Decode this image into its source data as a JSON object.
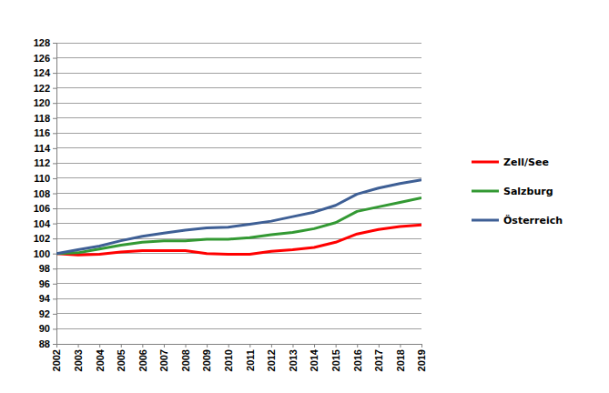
{
  "chart_data": {
    "type": "line",
    "x": [
      2002,
      2003,
      2004,
      2005,
      2006,
      2007,
      2008,
      2009,
      2010,
      2011,
      2012,
      2013,
      2014,
      2015,
      2016,
      2017,
      2018,
      2019
    ],
    "series": [
      {
        "name": "Zell/See",
        "color": "#ff0000",
        "values": [
          100,
          99.8,
          99.9,
          100.2,
          100.4,
          100.4,
          100.4,
          100.0,
          99.9,
          99.9,
          100.3,
          100.5,
          100.8,
          101.5,
          102.6,
          103.2,
          103.6,
          103.8
        ]
      },
      {
        "name": "Salzburg",
        "color": "#339933",
        "values": [
          100,
          100.1,
          100.6,
          101.1,
          101.5,
          101.7,
          101.7,
          101.9,
          101.9,
          102.1,
          102.5,
          102.8,
          103.3,
          104.1,
          105.6,
          106.2,
          106.8,
          107.4
        ]
      },
      {
        "name": "Österreich",
        "color": "#3e5f95",
        "values": [
          100,
          100.5,
          101.0,
          101.7,
          102.3,
          102.7,
          103.1,
          103.4,
          103.5,
          103.9,
          104.3,
          104.9,
          105.5,
          106.4,
          107.9,
          108.7,
          109.3,
          109.8
        ]
      }
    ],
    "xlim": [
      2002,
      2019
    ],
    "xticks": [
      2002,
      2003,
      2004,
      2005,
      2006,
      2007,
      2008,
      2009,
      2010,
      2011,
      2012,
      2013,
      2014,
      2015,
      2016,
      2017,
      2018,
      2019
    ],
    "ylim": [
      88,
      128
    ],
    "yticks": [
      88,
      90,
      92,
      94,
      96,
      98,
      100,
      102,
      104,
      106,
      108,
      110,
      112,
      114,
      116,
      118,
      120,
      122,
      124,
      126,
      128
    ],
    "grid": true,
    "legend": "right"
  }
}
